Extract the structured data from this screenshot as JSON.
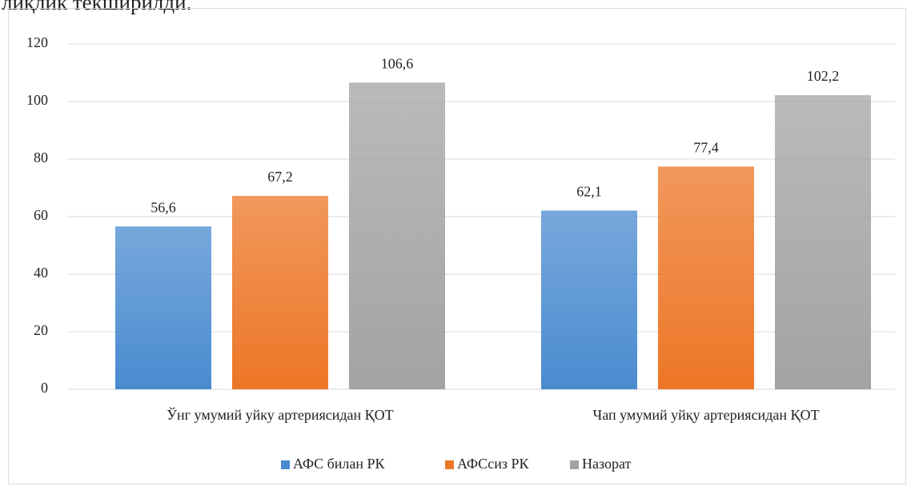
{
  "text_above": "лиқлик текширилди.",
  "chart_data": {
    "type": "bar",
    "categories": [
      "Ўнг умумий  уйку артериясидан ҚОТ",
      "Чап умумий уйқу артериясидан ҚОТ"
    ],
    "series": [
      {
        "name": "АФС билан РК",
        "color": "#4a8bd0",
        "values": [
          56.6,
          62.1
        ],
        "value_labels": [
          "56,6",
          "62,1"
        ]
      },
      {
        "name": "АФСсиз РК",
        "color": "#ed7626",
        "values": [
          67.2,
          77.4
        ],
        "value_labels": [
          "67,2",
          "77,4"
        ]
      },
      {
        "name": "Назорат",
        "color": "#a3a3a3",
        "values": [
          106.6,
          102.2
        ],
        "value_labels": [
          "106,6",
          "102,2"
        ]
      }
    ],
    "ylim": [
      0,
      120
    ],
    "yticks": [
      0,
      20,
      40,
      60,
      80,
      100,
      120
    ],
    "grid": true,
    "legend": "bottom"
  }
}
